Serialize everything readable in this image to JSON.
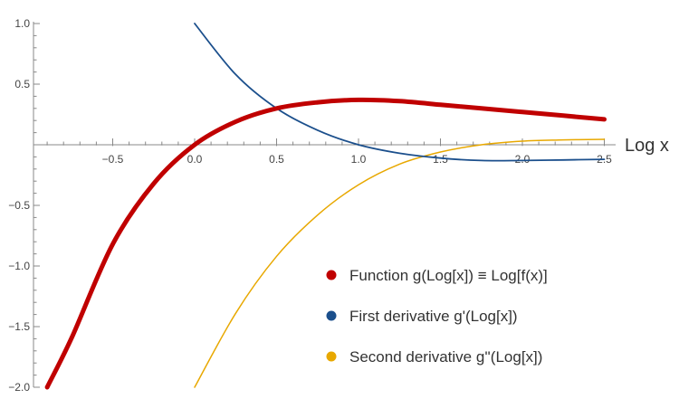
{
  "chart_data": {
    "type": "line",
    "title": "",
    "xlabel": "Log x",
    "ylabel": "",
    "xlim": [
      -1.0,
      2.5
    ],
    "ylim": [
      -2.0,
      1.0
    ],
    "grid": false,
    "legend_position": "bottom-right",
    "x_ticks": [
      "-0.5",
      "0.0",
      "0.5",
      "1.0",
      "1.5",
      "2.0",
      "2.5"
    ],
    "y_ticks": [
      "1.0",
      "0.5",
      "-0.5",
      "-1.0",
      "-1.5",
      "-2.0"
    ],
    "x": [
      -0.9,
      -0.75,
      -0.5,
      -0.25,
      0.0,
      0.25,
      0.5,
      0.75,
      1.0,
      1.25,
      1.5,
      1.75,
      2.0,
      2.25,
      2.5
    ],
    "series": [
      {
        "name": "Function g(Log[x]) ≡ Log[f(x)]",
        "color": "#c00000",
        "values": [
          -2.0,
          -1.59,
          -0.82,
          -0.32,
          0.0,
          0.19,
          0.3,
          0.35,
          0.37,
          0.36,
          0.33,
          0.3,
          0.27,
          0.24,
          0.21
        ]
      },
      {
        "name": "First derivative g'(Log[x])",
        "color": "#1b4f8c",
        "values": [
          null,
          null,
          null,
          null,
          1.0,
          0.58,
          0.3,
          0.12,
          0.0,
          -0.07,
          -0.11,
          -0.13,
          -0.13,
          -0.125,
          -0.12
        ]
      },
      {
        "name": "Second derivative g''(Log[x])",
        "color": "#e8a800",
        "values": [
          null,
          null,
          null,
          null,
          -2.0,
          -1.39,
          -0.92,
          -0.58,
          -0.33,
          -0.16,
          -0.06,
          0.0,
          0.03,
          0.04,
          0.045
        ]
      }
    ]
  }
}
